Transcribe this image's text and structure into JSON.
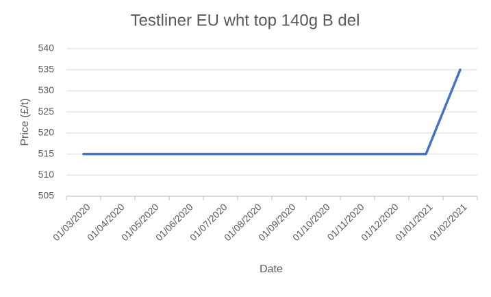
{
  "chart_data": {
    "type": "line",
    "title": "Testliner EU wht top 140g B del",
    "x_label": "Date",
    "y_label": "Price (£/t)",
    "categories": [
      "01/03/2020",
      "01/04/2020",
      "01/05/2020",
      "01/06/2020",
      "01/07/2020",
      "01/08/2020",
      "01/09/2020",
      "01/10/2020",
      "01/11/2020",
      "01/12/2020",
      "01/01/2021",
      "01/02/2021"
    ],
    "series": [
      {
        "name": "Price",
        "color": "#4472c4",
        "values": [
          515,
          515,
          515,
          515,
          515,
          515,
          515,
          515,
          515,
          515,
          515,
          535
        ]
      }
    ],
    "ylim": [
      505,
      540
    ],
    "yticks": [
      505,
      510,
      515,
      520,
      525,
      530,
      535,
      540
    ],
    "grid": true
  }
}
